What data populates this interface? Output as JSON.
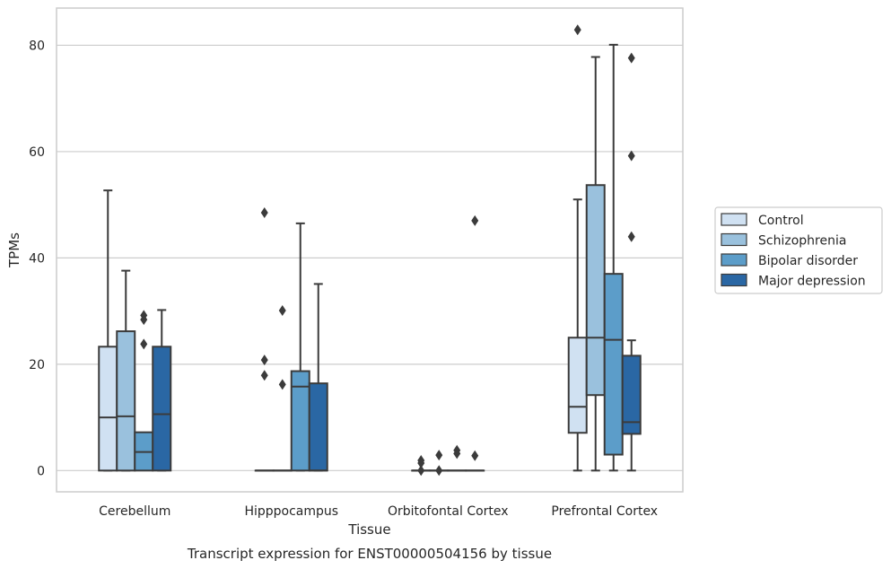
{
  "chart_data": {
    "type": "box",
    "xlabel": "Tissue",
    "ylabel": "TPMs",
    "caption": "Transcript expression for ENST00000504156 by tissue",
    "ylim": [
      -4,
      87
    ],
    "yticks": [
      0,
      20,
      40,
      60,
      80
    ],
    "grid": "horizontal",
    "legend_position": "right",
    "categories": [
      "Cerebellum",
      "Hipppocampus",
      "Orbitofontal Cortex",
      "Prefrontal Cortex"
    ],
    "series": [
      {
        "name": "Control",
        "color": "#d0e1f2",
        "boxes": [
          {
            "whislo": 0,
            "q1": 0,
            "med": 10,
            "q3": 23.3,
            "whishi": 52.7,
            "fliers": []
          },
          {
            "whislo": 0,
            "q1": 0,
            "med": 0,
            "q3": 0,
            "whishi": 0,
            "fliers": [
              48.5,
              20.8,
              17.9
            ]
          },
          {
            "whislo": 0,
            "q1": 0,
            "med": 0,
            "q3": 0,
            "whishi": 0,
            "fliers": [
              1.9,
              1.4,
              0
            ]
          },
          {
            "whislo": 0,
            "q1": 7.1,
            "med": 12,
            "q3": 25,
            "whishi": 51,
            "fliers": [
              82.9
            ]
          }
        ]
      },
      {
        "name": "Schizophrenia",
        "color": "#9ac1dd",
        "boxes": [
          {
            "whislo": 0,
            "q1": 0,
            "med": 10.2,
            "q3": 26.2,
            "whishi": 37.6,
            "fliers": []
          },
          {
            "whislo": 0,
            "q1": 0,
            "med": 0,
            "q3": 0,
            "whishi": 0,
            "fliers": [
              30.1,
              16.2
            ]
          },
          {
            "whislo": 0,
            "q1": 0,
            "med": 0,
            "q3": 0,
            "whishi": 0,
            "fliers": [
              2.9,
              0
            ]
          },
          {
            "whislo": 0,
            "q1": 14.2,
            "med": 25,
            "q3": 53.7,
            "whishi": 77.8,
            "fliers": []
          }
        ]
      },
      {
        "name": "Bipolar disorder",
        "color": "#5c9dc9",
        "boxes": [
          {
            "whislo": 0,
            "q1": 0,
            "med": 3.5,
            "q3": 7.2,
            "whishi": 7.2,
            "fliers": [
              29.2,
              28.4,
              23.8
            ]
          },
          {
            "whislo": 0,
            "q1": 0,
            "med": 15.8,
            "q3": 18.7,
            "whishi": 46.5,
            "fliers": []
          },
          {
            "whislo": 0,
            "q1": 0,
            "med": 0,
            "q3": 0,
            "whishi": 0,
            "fliers": [
              3.8,
              3.2
            ]
          },
          {
            "whislo": 0,
            "q1": 3,
            "med": 24.6,
            "q3": 37,
            "whishi": 80.1,
            "fliers": []
          }
        ]
      },
      {
        "name": "Major depression",
        "color": "#2a67a4",
        "boxes": [
          {
            "whislo": 0,
            "q1": 0,
            "med": 10.6,
            "q3": 23.3,
            "whishi": 30.2,
            "fliers": []
          },
          {
            "whislo": 0,
            "q1": 0,
            "med": 0,
            "q3": 16.4,
            "whishi": 35.1,
            "fliers": []
          },
          {
            "whislo": 0,
            "q1": 0,
            "med": 0,
            "q3": 0,
            "whishi": 0,
            "fliers": [
              47,
              2.8
            ]
          },
          {
            "whislo": 0,
            "q1": 6.9,
            "med": 9.1,
            "q3": 21.6,
            "whishi": 24.5,
            "fliers": [
              77.6,
              59.2,
              44
            ]
          }
        ]
      }
    ]
  },
  "colors": {
    "edge": "#3b3b3b",
    "grid": "#cccccc",
    "frame": "#cccccc",
    "text": "#262626"
  }
}
